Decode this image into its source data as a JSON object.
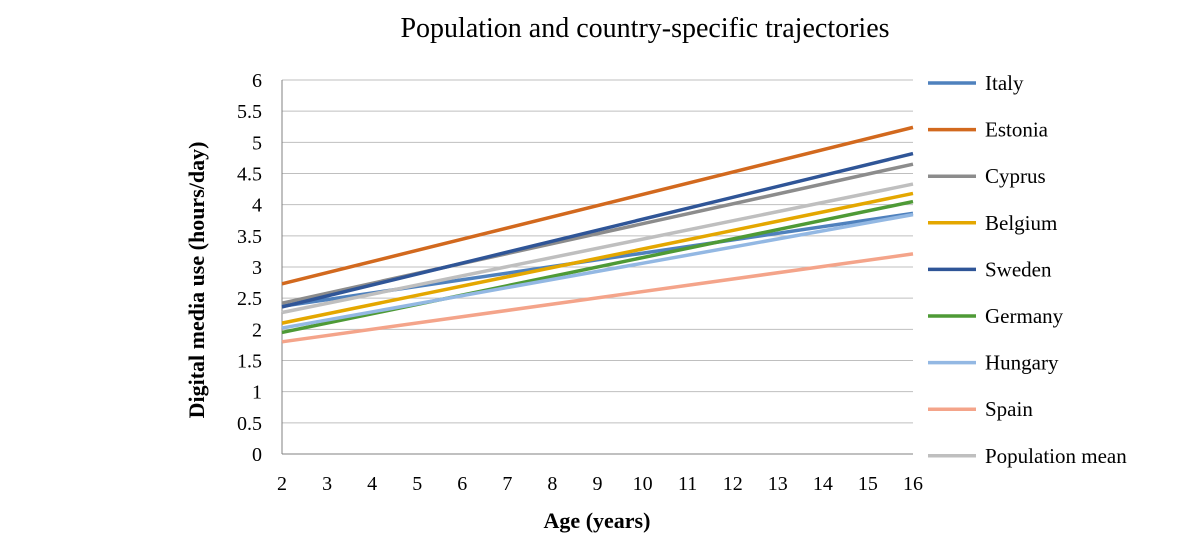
{
  "chart_data": {
    "type": "line",
    "title": "Population and country-specific trajectories",
    "xlabel": "Age (years)",
    "ylabel": "Digital media use (hours/day)",
    "xlim": [
      2,
      16
    ],
    "ylim": [
      0,
      6
    ],
    "x_ticks": [
      "2",
      "3",
      "4",
      "5",
      "6",
      "7",
      "8",
      "9",
      "10",
      "11",
      "12",
      "13",
      "14",
      "15",
      "16"
    ],
    "y_ticks": [
      "0",
      "0.5",
      "1",
      "1.5",
      "2",
      "2.5",
      "3",
      "3.5",
      "4",
      "4.5",
      "5",
      "5.5",
      "6"
    ],
    "grid": true,
    "legend_position": "right",
    "series": [
      {
        "name": "Italy",
        "color": "#4F81BD",
        "x": [
          2,
          16
        ],
        "y": [
          2.37,
          3.86
        ]
      },
      {
        "name": "Estonia",
        "color": "#D2691E",
        "x": [
          2,
          16
        ],
        "y": [
          2.73,
          5.24
        ]
      },
      {
        "name": "Cyprus",
        "color": "#8C8C8C",
        "x": [
          2,
          16
        ],
        "y": [
          2.42,
          4.65
        ]
      },
      {
        "name": "Belgium",
        "color": "#E4A700",
        "x": [
          2,
          16
        ],
        "y": [
          2.1,
          4.18
        ]
      },
      {
        "name": "Sweden",
        "color": "#2F5597",
        "x": [
          2,
          16
        ],
        "y": [
          2.36,
          4.82
        ]
      },
      {
        "name": "Germany",
        "color": "#4E9A36",
        "x": [
          2,
          16
        ],
        "y": [
          1.95,
          4.05
        ]
      },
      {
        "name": "Hungary",
        "color": "#93B8E3",
        "x": [
          2,
          16
        ],
        "y": [
          2.02,
          3.84
        ]
      },
      {
        "name": "Spain",
        "color": "#F4A48A",
        "x": [
          2,
          16
        ],
        "y": [
          1.8,
          3.21
        ]
      },
      {
        "name": "Population mean",
        "color": "#BFBFBF",
        "x": [
          2,
          16
        ],
        "y": [
          2.27,
          4.33
        ]
      }
    ]
  }
}
